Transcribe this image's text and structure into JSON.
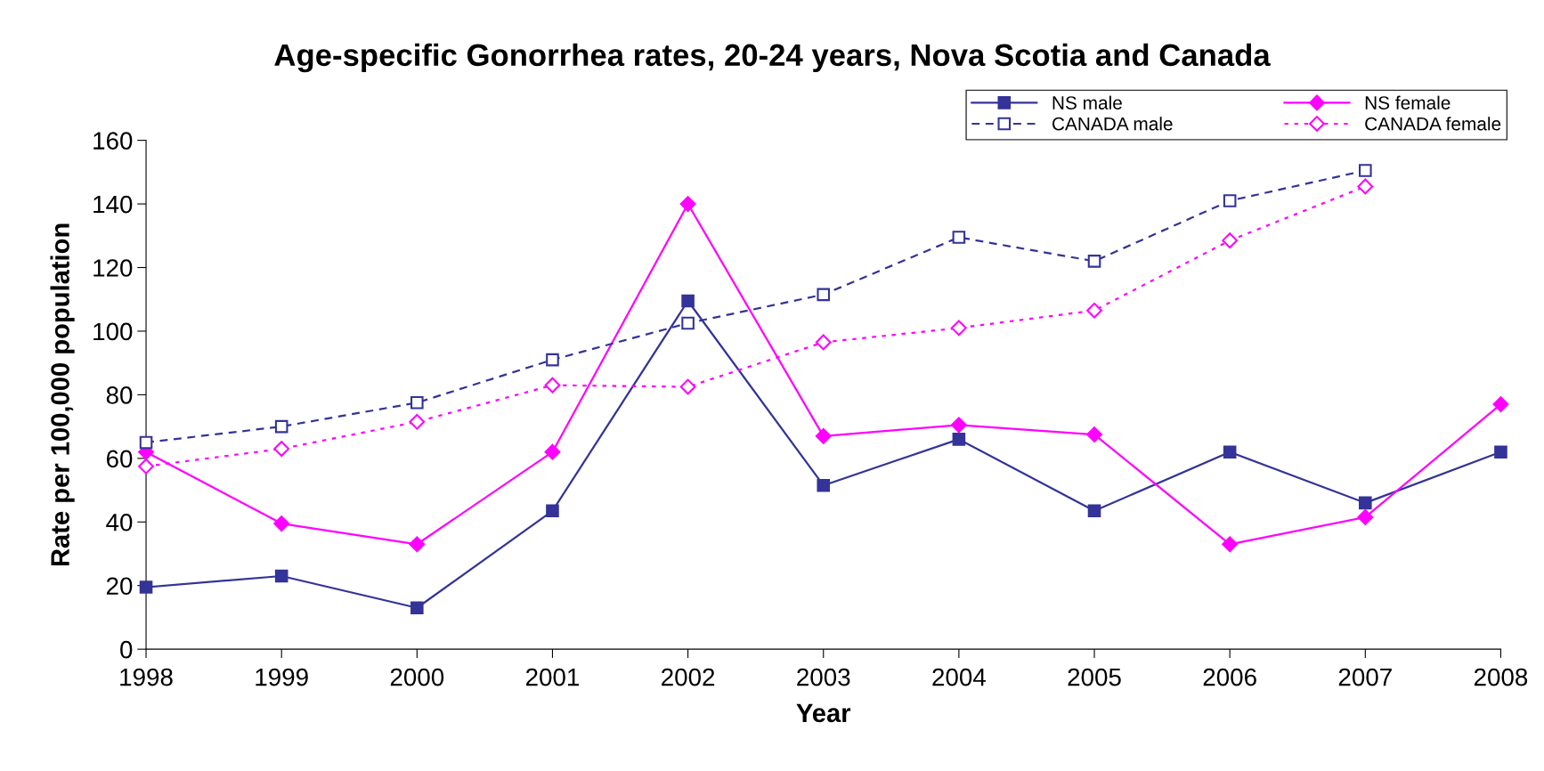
{
  "chart_data": {
    "type": "line",
    "title": "Age-specific Gonorrhea rates, 20-24 years, Nova Scotia and Canada",
    "xlabel": "Year",
    "ylabel": "Rate per 100,000 population",
    "x": [
      1998,
      1999,
      2000,
      2001,
      2002,
      2003,
      2004,
      2005,
      2006,
      2007,
      2008
    ],
    "xlim": [
      1998,
      2008
    ],
    "xticks": [
      1998,
      1999,
      2000,
      2001,
      2002,
      2003,
      2004,
      2005,
      2006,
      2007,
      2008
    ],
    "ylim": [
      0,
      160
    ],
    "yticks": [
      0,
      20,
      40,
      60,
      80,
      100,
      120,
      140,
      160
    ],
    "grid": false,
    "legend": "top right",
    "series": [
      {
        "name": "NS male",
        "color": "#333399",
        "marker": "square",
        "line_style": "solid",
        "values": [
          19.5,
          23,
          13,
          43.5,
          109.5,
          51.5,
          66,
          43.5,
          62,
          46,
          62
        ]
      },
      {
        "name": "NS female",
        "color": "#ff00ff",
        "marker": "diamond",
        "line_style": "solid",
        "values": [
          62,
          39.5,
          33,
          62,
          140,
          67,
          70.5,
          67.5,
          33,
          41.5,
          77
        ]
      },
      {
        "name": "CANADA male",
        "color": "#333399",
        "marker": "square",
        "line_style": "dashed",
        "values": [
          65,
          70,
          77.5,
          91,
          102.5,
          111.5,
          129.5,
          122,
          141,
          150.5,
          null
        ]
      },
      {
        "name": "CANADA female",
        "color": "#ff00ff",
        "marker": "diamond",
        "line_style": "dotted",
        "values": [
          57.5,
          63,
          71.5,
          83,
          82.5,
          96.5,
          101,
          106.5,
          128.5,
          145.5,
          null
        ]
      }
    ]
  }
}
